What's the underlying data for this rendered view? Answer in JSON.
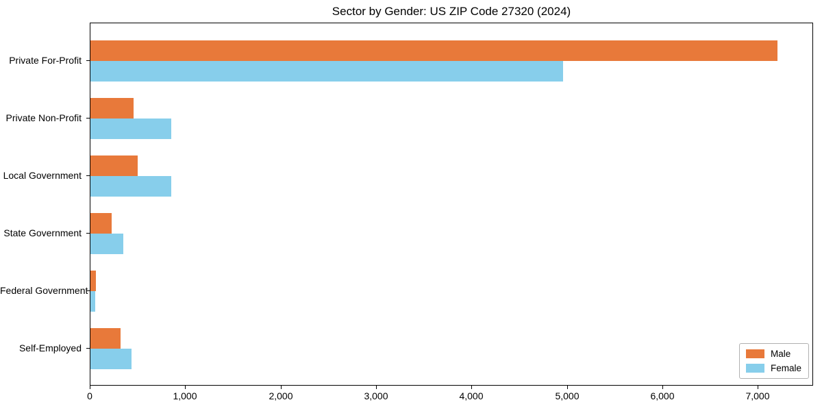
{
  "chart_data": {
    "type": "bar",
    "orientation": "horizontal",
    "title": "Sector by Gender: US ZIP Code 27320 (2024)",
    "xlabel": "",
    "ylabel": "",
    "categories": [
      "Private For-Profit",
      "Private Non-Profit",
      "Local Government",
      "State Government",
      "Federal Government",
      "Self-Employed"
    ],
    "series": [
      {
        "name": "Male",
        "color": "#e8793a",
        "values": [
          7200,
          450,
          495,
          225,
          55,
          315
        ]
      },
      {
        "name": "Female",
        "color": "#87ceeb",
        "values": [
          4950,
          850,
          850,
          345,
          50,
          430
        ]
      }
    ],
    "xlim": [
      0,
      7580
    ],
    "xticks": [
      0,
      1000,
      2000,
      3000,
      4000,
      5000,
      6000,
      7000
    ],
    "xtick_labels": [
      "0",
      "1,000",
      "2,000",
      "3,000",
      "4,000",
      "5,000",
      "6,000",
      "7,000"
    ],
    "grid": false,
    "legend_position": "lower right",
    "background_color": "#ffffff",
    "spine_color": "#000000"
  }
}
